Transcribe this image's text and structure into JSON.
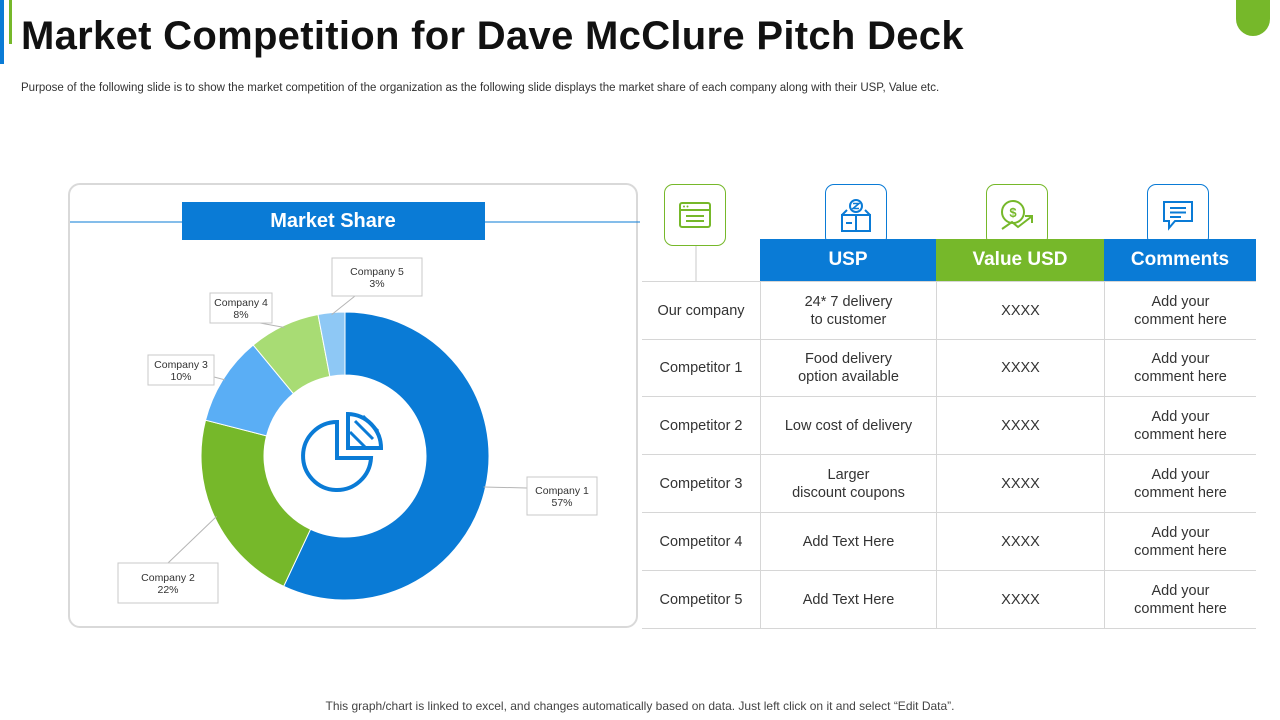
{
  "page": {
    "title": "Market Competition for Dave McClure Pitch Deck",
    "subtitle": "Purpose of the following slide is to show the market competition of the organization as the following slide displays the market share of each company along with their USP, Value etc.",
    "footer": "This graph/chart is linked to excel, and changes automatically based on data. Just left click on it and select “Edit Data”."
  },
  "chart_data": {
    "type": "pie",
    "title": "Market Share",
    "categories": [
      "Company 1",
      "Company 2",
      "Company 3",
      "Company 4",
      "Company 5"
    ],
    "values": [
      57,
      22,
      10,
      8,
      3
    ],
    "value_labels": [
      "57%",
      "22%",
      "10%",
      "8%",
      "3%"
    ],
    "colors": [
      "#0a7bd6",
      "#76b82a",
      "#5aaef5",
      "#a8dc74",
      "#8ec8f5"
    ],
    "donut": true,
    "start": "12 o'clock",
    "direction": "clockwise",
    "title_color": "#0a7bd6"
  },
  "table": {
    "headers": [
      "USP",
      "Value USD",
      "Comments"
    ],
    "header_colors": [
      "#0a7bd6",
      "#76b82a",
      "#0a7bd6"
    ],
    "icons": [
      "browser-window-icon",
      "box-with-money-icon",
      "dollar-growth-icon",
      "comment-bubble-icon"
    ],
    "rows": [
      {
        "name": "Our company",
        "usp": "24* 7 delivery\nto customer",
        "value": "XXXX",
        "comment": "Add your\ncomment here"
      },
      {
        "name": "Competitor 1",
        "usp": "Food delivery\noption available",
        "value": "XXXX",
        "comment": "Add your\ncomment here"
      },
      {
        "name": "Competitor 2",
        "usp": "Low cost of delivery",
        "value": "XXXX",
        "comment": "Add your\ncomment here"
      },
      {
        "name": "Competitor 3",
        "usp": "Larger\ndiscount coupons",
        "value": "XXXX",
        "comment": "Add your\ncomment here"
      },
      {
        "name": "Competitor 4",
        "usp": "Add Text Here",
        "value": "XXXX",
        "comment": "Add your\ncomment here"
      },
      {
        "name": "Competitor 5",
        "usp": "Add Text Here",
        "value": "XXXX",
        "comment": "Add your\ncomment here"
      }
    ]
  }
}
